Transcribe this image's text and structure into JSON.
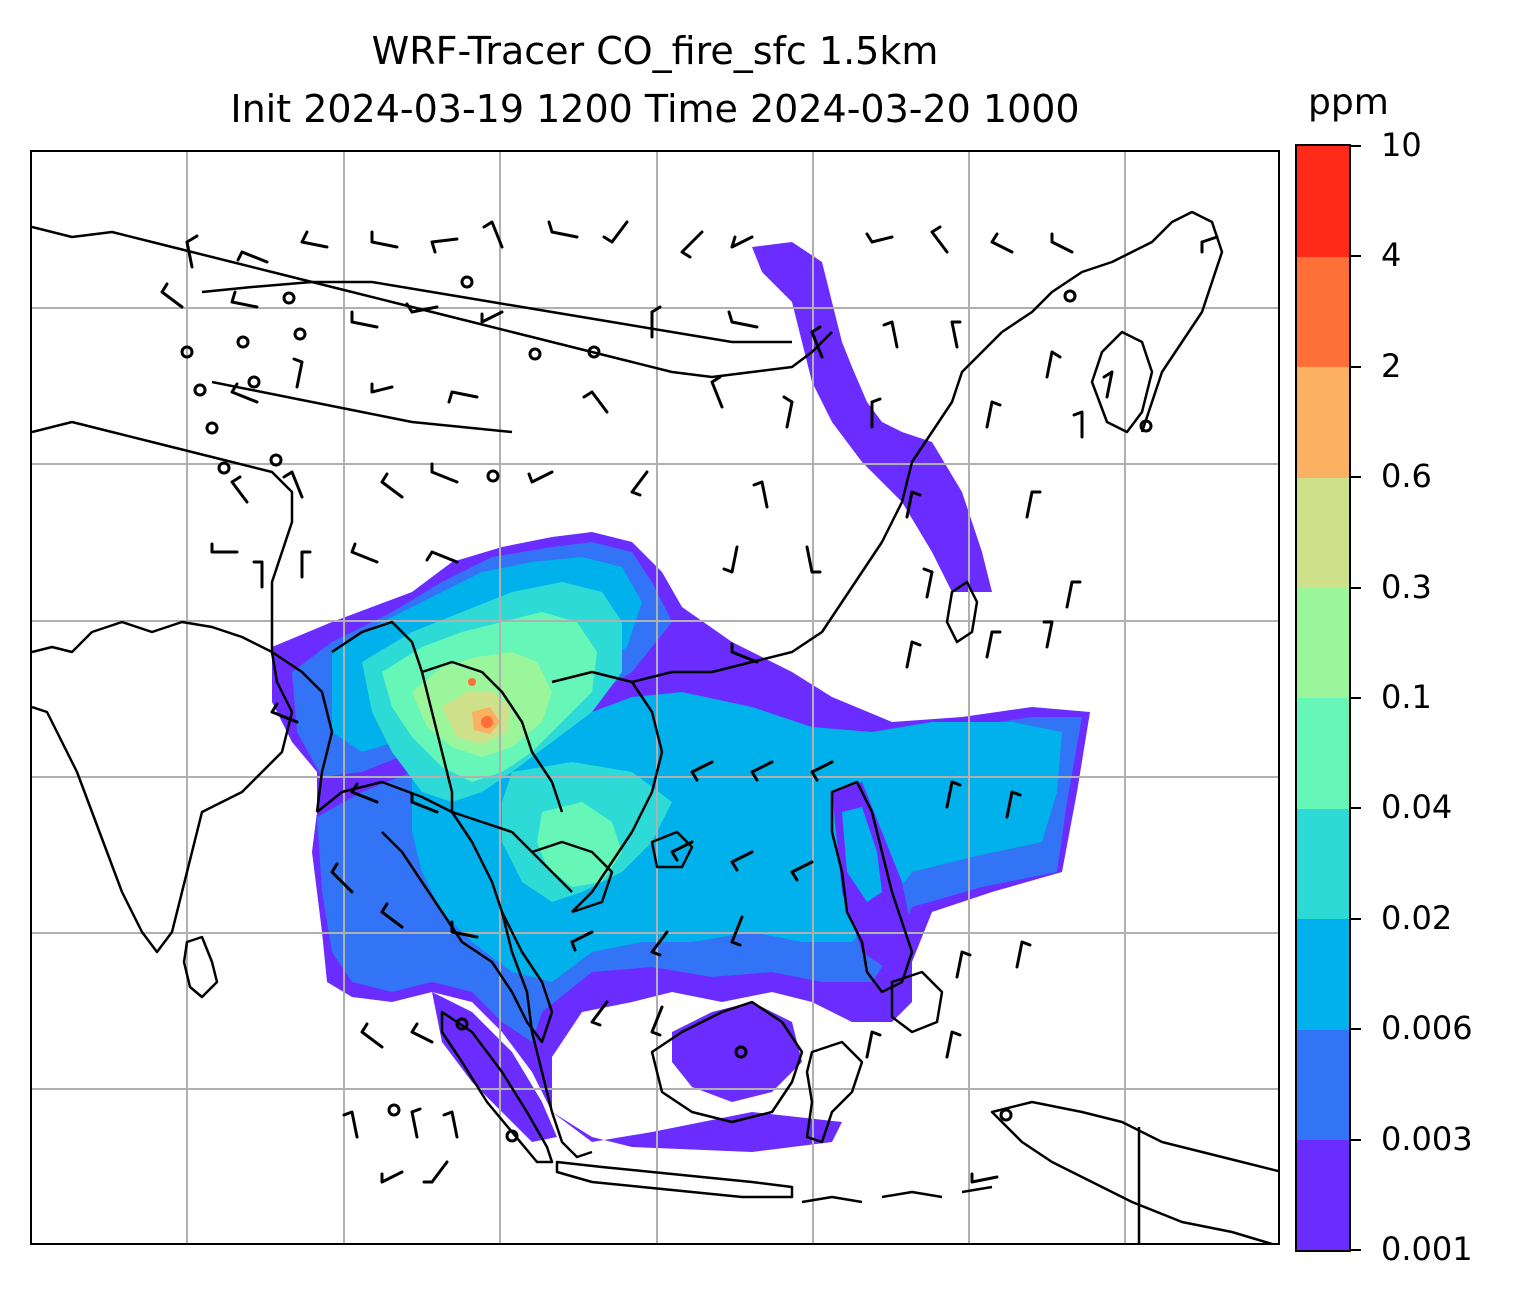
{
  "title": {
    "line1": "WRF-Tracer CO_fire_sfc 1.5km",
    "line2": "Init 2024-03-19 1200 Time 2024-03-20 1000"
  },
  "colorbar": {
    "unit": "ppm",
    "levels": [
      "0.001",
      "0.003",
      "0.006",
      "0.02",
      "0.04",
      "0.1",
      "0.3",
      "0.6",
      "2",
      "4",
      "10"
    ],
    "colors": [
      "#6a2cff",
      "#3274f5",
      "#00b1ec",
      "#2ddad6",
      "#66f7b8",
      "#9bf59b",
      "#cfe08a",
      "#fcb062",
      "#ff7038",
      "#ff2b18"
    ]
  },
  "map": {
    "gridlines": true,
    "gridline_color": "#b0b0b0",
    "coastline_color": "#000000"
  }
}
